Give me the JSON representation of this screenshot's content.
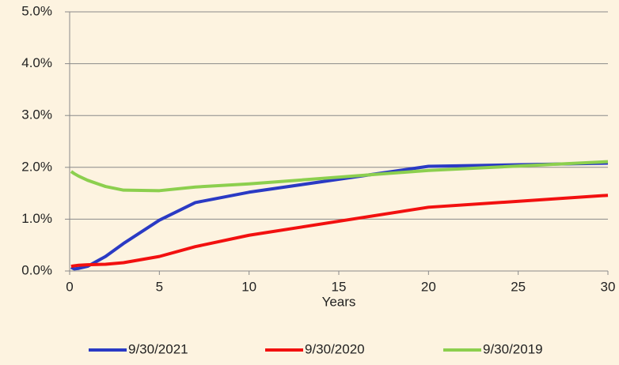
{
  "chart_data": {
    "type": "line",
    "x_label": "Years",
    "x": [
      0.083,
      0.25,
      0.5,
      1,
      2,
      3,
      5,
      7,
      10,
      20,
      30
    ],
    "series": [
      {
        "name": "9/30/2021",
        "color": "#2a3ac4",
        "values": [
          0.07,
          0.04,
          0.05,
          0.09,
          0.28,
          0.53,
          0.98,
          1.32,
          1.52,
          2.02,
          2.08
        ]
      },
      {
        "name": "9/30/2020",
        "color": "#f2100f",
        "values": [
          0.09,
          0.1,
          0.11,
          0.12,
          0.13,
          0.16,
          0.28,
          0.47,
          0.69,
          1.23,
          1.46
        ]
      },
      {
        "name": "9/30/2019",
        "color": "#8ccf4e",
        "values": [
          1.92,
          1.88,
          1.83,
          1.75,
          1.63,
          1.56,
          1.55,
          1.62,
          1.68,
          1.94,
          2.11
        ]
      }
    ],
    "xlim": [
      0,
      30
    ],
    "xticks": [
      0,
      5,
      10,
      15,
      20,
      25,
      30
    ],
    "ylim": [
      0,
      5
    ],
    "yticks": [
      {
        "value": 0,
        "label": "0.0%"
      },
      {
        "value": 1,
        "label": "1.0%"
      },
      {
        "value": 2,
        "label": "2.0%"
      },
      {
        "value": 3,
        "label": "3.0%"
      },
      {
        "value": 4,
        "label": "4.0%"
      },
      {
        "value": 5,
        "label": "5.0%"
      }
    ],
    "grid": true,
    "legend": "bottom"
  }
}
